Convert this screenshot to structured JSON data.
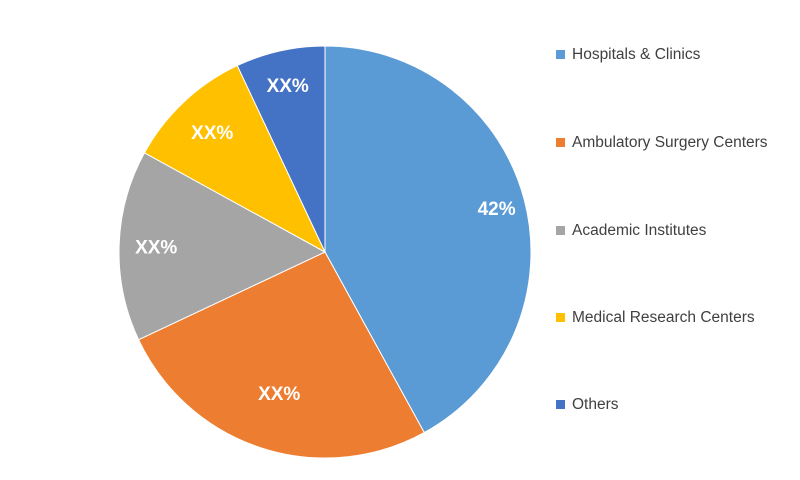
{
  "chart_data": {
    "type": "pie",
    "title": "",
    "categories": [
      "Hospitals & Clinics",
      "Ambulatory Surgery Centers",
      "Academic Institutes",
      "Medical Research Centers",
      "Others"
    ],
    "values": [
      42,
      26,
      15,
      10,
      7
    ],
    "data_labels": [
      "42%",
      "XX%",
      "XX%",
      "XX%",
      "XX%"
    ],
    "colors": [
      "#5B9BD5",
      "#ED7D31",
      "#A5A5A5",
      "#FFC000",
      "#4472C4"
    ],
    "legend_position": "right",
    "start_angle": "12 o'clock",
    "direction": "clockwise"
  }
}
